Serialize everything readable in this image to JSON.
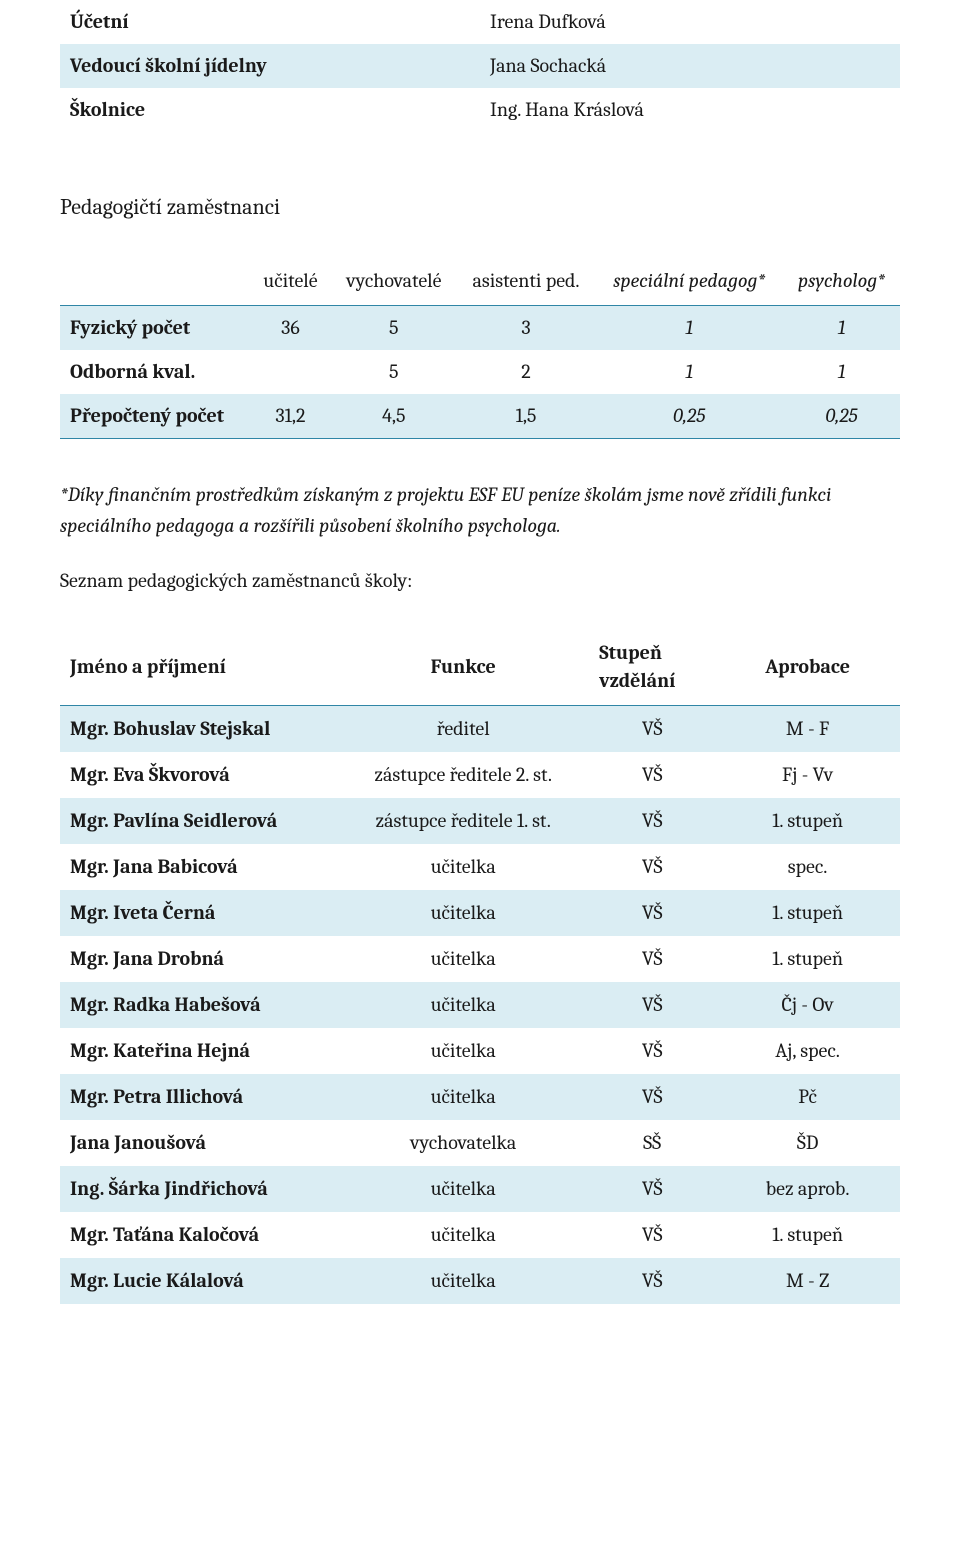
{
  "colors": {
    "row_alt_bg": "#daedf3",
    "rule": "#2f86a6",
    "text": "#1a1a1a",
    "bg": "#ffffff"
  },
  "typography": {
    "body_fontsize_pt": 15,
    "font_family": "Cambria / serif"
  },
  "staff_roles": {
    "type": "table",
    "cols": [
      "role",
      "name"
    ],
    "rows": [
      {
        "role": "Účetní",
        "name": "Irena Dufková",
        "alt": false
      },
      {
        "role": "Vedoucí školní jídelny",
        "name": "Jana Sochacká",
        "alt": true
      },
      {
        "role": "Školnice",
        "name": "Ing. Hana Kráslová",
        "alt": false
      }
    ],
    "border_top": true,
    "border_bottom": true
  },
  "section_heading": "Pedagogičtí zaměstnanci",
  "counts": {
    "type": "table",
    "headers": {
      "blank": "",
      "ucitele": "učitelé",
      "vychovatele": "vychovatelé",
      "asistenti": "asistenti ped.",
      "spec_pedagog": "speciální pedagog*",
      "psycholog": "psycholog*"
    },
    "header_italic_cols": [
      "spec_pedagog",
      "psycholog"
    ],
    "rows": [
      {
        "label": "Fyzický počet",
        "vals": [
          "36",
          "5",
          "3",
          "1",
          "1"
        ],
        "italic_cols": [
          3,
          4
        ],
        "alt": true
      },
      {
        "label": "Odborná kval.",
        "vals": [
          "",
          "5",
          "2",
          "1",
          "1"
        ],
        "italic_cols": [
          3,
          4
        ],
        "alt": false
      },
      {
        "label": "Přepočtený počet",
        "vals": [
          "31,2",
          "4,5",
          "1,5",
          "0,25",
          "0,25"
        ],
        "italic_cols": [
          3,
          4
        ],
        "alt": true
      }
    ]
  },
  "footnote": "*Díky finančním prostředkům získaným z projektu ESF EU peníze školám jsme nově zřídili funkci speciálního pedagoga a rozšířili působení školního psychologa.",
  "employees_heading": "Seznam pedagogických zaměstnanců školy:",
  "employees": {
    "type": "table",
    "headers": {
      "name": "Jméno a příjmení",
      "func": "Funkce",
      "degree_l1": "Stupeň",
      "degree_l2": "vzdělání",
      "aprobace": "Aprobace"
    },
    "col_align": {
      "name": "left",
      "func": "center",
      "degree": "center",
      "aprobace": "center"
    },
    "rows": [
      {
        "name": "Mgr. Bohuslav Stejskal",
        "func": "ředitel",
        "degree": "VŠ",
        "aprobace": "M - F",
        "alt": true
      },
      {
        "name": "Mgr. Eva Škvorová",
        "func": "zástupce ředitele 2. st.",
        "degree": "VŠ",
        "aprobace": "Fj - Vv",
        "alt": false
      },
      {
        "name": "Mgr. Pavlína Seidlerová",
        "func": "zástupce ředitele 1. st.",
        "degree": "VŠ",
        "aprobace": "1. stupeň",
        "alt": true
      },
      {
        "name": "Mgr. Jana Babicová",
        "func": "učitelka",
        "degree": "VŠ",
        "aprobace": "spec.",
        "alt": false
      },
      {
        "name": "Mgr. Iveta Černá",
        "func": "učitelka",
        "degree": "VŠ",
        "aprobace": "1. stupeň",
        "alt": true
      },
      {
        "name": "Mgr. Jana Drobná",
        "func": "učitelka",
        "degree": "VŠ",
        "aprobace": "1. stupeň",
        "alt": false
      },
      {
        "name": "Mgr. Radka Habešová",
        "func": "učitelka",
        "degree": "VŠ",
        "aprobace": "Čj - Ov",
        "alt": true
      },
      {
        "name": "Mgr. Kateřina Hejná",
        "func": "učitelka",
        "degree": "VŠ",
        "aprobace": "Aj, spec.",
        "alt": false
      },
      {
        "name": "Mgr. Petra Illichová",
        "func": "učitelka",
        "degree": "VŠ",
        "aprobace": "Pč",
        "alt": true
      },
      {
        "name": "Jana Janoušová",
        "func": "vychovatelka",
        "degree": "SŠ",
        "aprobace": "ŠD",
        "alt": false
      },
      {
        "name": "Ing. Šárka Jindřichová",
        "func": "učitelka",
        "degree": "VŠ",
        "aprobace": "bez aprob.",
        "alt": true
      },
      {
        "name": "Mgr. Taťána Kaločová",
        "func": "učitelka",
        "degree": "VŠ",
        "aprobace": "1. stupeň",
        "alt": false
      },
      {
        "name": "Mgr. Lucie Kálalová",
        "func": "učitelka",
        "degree": "VŠ",
        "aprobace": "M - Z",
        "alt": true
      }
    ]
  }
}
